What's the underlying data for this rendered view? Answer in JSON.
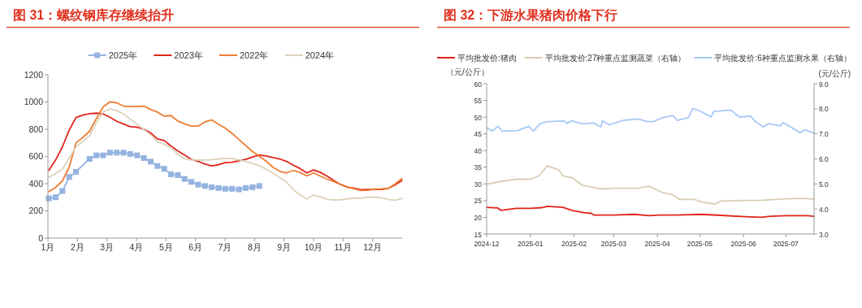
{
  "chart_data": [
    {
      "type": "line",
      "title": "图 31：螺纹钢库存继续抬升",
      "legend": "top",
      "grid": false,
      "x": [
        1.03,
        1.26,
        1.49,
        1.72,
        1.95,
        2.18,
        2.41,
        2.64,
        2.87,
        3.1,
        3.33,
        3.56,
        3.79,
        4.02,
        4.25,
        4.48,
        4.71,
        4.94,
        5.17,
        5.4,
        5.63,
        5.86,
        6.09,
        6.32,
        6.55,
        6.78,
        7.01,
        7.24,
        7.47,
        7.7,
        7.93,
        8.16,
        8.39,
        8.62,
        8.85,
        9.08,
        9.31,
        9.54,
        9.77,
        10.0,
        10.23,
        10.46,
        10.69,
        10.92,
        11.15,
        11.38,
        11.61,
        11.84,
        12.07,
        12.3,
        12.53,
        12.76,
        12.99
      ],
      "xlim": [
        1,
        13
      ],
      "xticks": [
        {
          "value": 1,
          "label": "1月"
        },
        {
          "value": 2,
          "label": "2月"
        },
        {
          "value": 3,
          "label": "3月"
        },
        {
          "value": 4,
          "label": "4月"
        },
        {
          "value": 5,
          "label": "5月"
        },
        {
          "value": 6,
          "label": "6月"
        },
        {
          "value": 7,
          "label": "7月"
        },
        {
          "value": 8,
          "label": "8月"
        },
        {
          "value": 9,
          "label": "9月"
        },
        {
          "value": 10,
          "label": "10月"
        },
        {
          "value": 11,
          "label": "11月"
        },
        {
          "value": 12,
          "label": "12月"
        }
      ],
      "ylim": [
        0,
        1200
      ],
      "yticks": [
        0,
        200,
        400,
        600,
        800,
        1000,
        1200
      ],
      "series": [
        {
          "name": "2025年",
          "color": "#95b3e0",
          "marker": "square",
          "x": [
            1.03,
            1.26,
            1.49,
            1.72,
            1.95,
            2.41,
            2.64,
            2.87,
            3.1,
            3.33,
            3.56,
            3.79,
            4.02,
            4.25,
            4.48,
            4.71,
            4.94,
            5.17,
            5.4,
            5.63,
            5.86,
            6.09,
            6.32,
            6.55,
            6.78,
            7.01,
            7.24,
            7.47,
            7.7,
            7.93,
            8.16
          ],
          "values": [
            292,
            300,
            346,
            449,
            487,
            582,
            608,
            608,
            628,
            628,
            628,
            618,
            608,
            588,
            562,
            530,
            509,
            469,
            463,
            435,
            413,
            393,
            383,
            374,
            368,
            362,
            362,
            358,
            368,
            374,
            383
          ]
        },
        {
          "name": "2023年",
          "color": "#e0241b",
          "values": [
            497,
            574,
            670,
            793,
            886,
            904,
            914,
            918,
            912,
            888,
            858,
            838,
            819,
            815,
            799,
            773,
            729,
            717,
            676,
            640,
            610,
            578,
            564,
            544,
            530,
            540,
            554,
            558,
            568,
            578,
            596,
            610,
            604,
            592,
            582,
            564,
            536,
            511,
            479,
            501,
            483,
            455,
            423,
            393,
            374,
            366,
            356,
            358,
            358,
            358,
            366,
            391,
            423
          ]
        },
        {
          "name": "2022年",
          "color": "#ed7d31",
          "values": [
            342,
            372,
            421,
            521,
            699,
            739,
            785,
            878,
            964,
            1001,
            994,
            970,
            966,
            966,
            970,
            944,
            926,
            896,
            900,
            860,
            840,
            823,
            823,
            854,
            868,
            836,
            807,
            769,
            725,
            680,
            636,
            602,
            566,
            521,
            491,
            479,
            497,
            483,
            457,
            479,
            455,
            433,
            415,
            393,
            376,
            362,
            350,
            352,
            360,
            362,
            366,
            397,
            437
          ]
        },
        {
          "name": "2024年",
          "color": "#ddd2bb",
          "values": [
            447,
            475,
            507,
            590,
            670,
            709,
            753,
            848,
            928,
            948,
            938,
            912,
            874,
            838,
            797,
            759,
            709,
            689,
            666,
            616,
            582,
            574,
            574,
            574,
            576,
            582,
            586,
            584,
            576,
            564,
            548,
            532,
            507,
            477,
            445,
            411,
            356,
            318,
            286,
            316,
            304,
            284,
            280,
            282,
            288,
            294,
            294,
            300,
            300,
            296,
            284,
            278,
            292
          ]
        }
      ]
    },
    {
      "type": "line",
      "title": "图 32：下游水果猪肉价格下行",
      "legend": "top left",
      "grid": false,
      "ylabel": "（元/公斤）",
      "y2label": "(元/公斤)",
      "xlim": [
        "2024-12-01",
        "2025-07-21"
      ],
      "xticks": [
        "2024-12",
        "2025-01",
        "2025-02",
        "2025-03",
        "2025-04",
        "2025-05",
        "2025-06",
        "2025-07"
      ],
      "ylim": [
        15,
        60
      ],
      "yticks": [
        15,
        20,
        25,
        30,
        35,
        40,
        45,
        50,
        55,
        60
      ],
      "y2lim": [
        3,
        9
      ],
      "y2ticks": [
        {
          "value": 3,
          "label": "3.0"
        },
        {
          "value": 4,
          "label": "4.0"
        },
        {
          "value": 5,
          "label": "5.0"
        },
        {
          "value": 6,
          "label": "6.0"
        },
        {
          "value": 7,
          "label": "7.0"
        },
        {
          "value": 8,
          "label": "8.0"
        },
        {
          "value": 9,
          "label": "9.0"
        }
      ],
      "series": [
        {
          "name": "平均批发价:猪肉",
          "color": "#e0241b",
          "x": [
            "2024-12-01",
            "2024-12-09",
            "2024-12-11",
            "2024-12-22",
            "2025-01-01",
            "2025-01-09",
            "2025-01-13",
            "2025-01-24",
            "2025-01-31",
            "2025-02-08",
            "2025-02-13",
            "2025-02-15",
            "2025-03-02",
            "2025-03-16",
            "2025-03-26",
            "2025-04-02",
            "2025-04-15",
            "2025-05-02",
            "2025-05-16",
            "2025-06-02",
            "2025-06-14",
            "2025-06-20",
            "2025-07-02",
            "2025-07-16",
            "2025-07-21"
          ],
          "values": [
            23.0,
            22.8,
            22.1,
            22.7,
            22.7,
            22.9,
            23.3,
            23.0,
            22.0,
            21.4,
            21.2,
            20.7,
            20.7,
            20.9,
            20.5,
            20.7,
            20.7,
            20.9,
            20.6,
            20.2,
            20.0,
            20.3,
            20.5,
            20.5,
            20.3
          ]
        },
        {
          "name": "平均批发价:27种重点监测蔬菜（右轴）",
          "color": "#d9cdb4",
          "axis": "y2",
          "x": [
            "2024-12-01",
            "2024-12-11",
            "2024-12-22",
            "2025-01-01",
            "2025-01-07",
            "2025-01-13",
            "2025-01-21",
            "2025-01-24",
            "2025-01-31",
            "2025-02-07",
            "2025-02-15",
            "2025-02-20",
            "2025-03-02",
            "2025-03-18",
            "2025-03-26",
            "2025-04-04",
            "2025-04-12",
            "2025-04-17",
            "2025-04-27",
            "2025-05-03",
            "2025-05-12",
            "2025-05-16",
            "2025-06-02",
            "2025-06-14",
            "2025-06-29",
            "2025-07-11",
            "2025-07-21"
          ],
          "values": [
            4.99,
            5.1,
            5.19,
            5.19,
            5.32,
            5.72,
            5.57,
            5.32,
            5.24,
            4.94,
            4.86,
            4.8,
            4.83,
            4.83,
            4.91,
            4.67,
            4.56,
            4.38,
            4.38,
            4.27,
            4.2,
            4.32,
            4.34,
            4.35,
            4.4,
            4.42,
            4.4
          ]
        },
        {
          "name": "平均批发价:6种重点监测水果（右轴）",
          "color": "#a8c8f8",
          "axis": "y2",
          "x": [
            "2024-12-01",
            "2024-12-05",
            "2024-12-09",
            "2024-12-12",
            "2024-12-23",
            "2024-12-31",
            "2025-01-03",
            "2025-01-08",
            "2025-01-13",
            "2025-01-25",
            "2025-01-27",
            "2025-01-30",
            "2025-02-07",
            "2025-02-15",
            "2025-02-20",
            "2025-02-21",
            "2025-02-26",
            "2025-03-08",
            "2025-03-18",
            "2025-03-25",
            "2025-03-29",
            "2025-04-04",
            "2025-04-12",
            "2025-04-15",
            "2025-04-23",
            "2025-04-26",
            "2025-05-02",
            "2025-05-09",
            "2025-05-11",
            "2025-05-23",
            "2025-05-29",
            "2025-06-06",
            "2025-06-09",
            "2025-06-15",
            "2025-06-19",
            "2025-06-27",
            "2025-06-29",
            "2025-07-11",
            "2025-07-15",
            "2025-07-21"
          ],
          "values": [
            7.24,
            7.11,
            7.3,
            7.11,
            7.13,
            7.3,
            7.11,
            7.41,
            7.49,
            7.51,
            7.41,
            7.52,
            7.4,
            7.43,
            7.27,
            7.52,
            7.36,
            7.54,
            7.59,
            7.49,
            7.49,
            7.63,
            7.73,
            7.54,
            7.65,
            8.01,
            7.89,
            7.67,
            7.89,
            7.95,
            7.67,
            7.71,
            7.51,
            7.27,
            7.41,
            7.32,
            7.45,
            7.05,
            7.16,
            7.02
          ]
        }
      ]
    }
  ]
}
